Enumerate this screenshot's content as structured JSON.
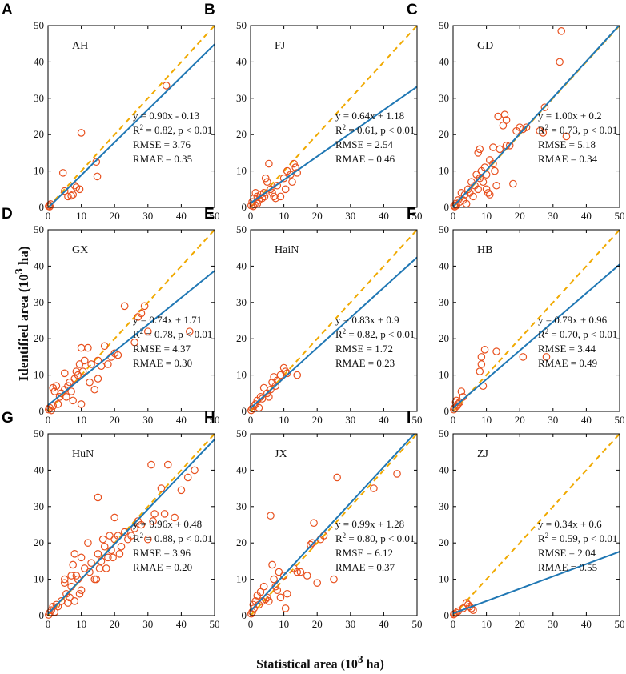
{
  "labels": {
    "y_axis_prefix": "Identified area (10",
    "y_axis_sup": "3",
    "y_axis_suffix": " ha)",
    "x_axis_prefix": "Statistical area (10",
    "x_axis_sup": "3",
    "x_axis_suffix": " ha)"
  },
  "style": {
    "marker_color": "#e8501e",
    "fit_color": "#1f77b4",
    "ref_color": "#f0a900"
  },
  "chart_data": [
    {
      "type": "scatter",
      "letter": "A",
      "region": "AH",
      "xlim": [
        0,
        50
      ],
      "ylim": [
        0,
        50
      ],
      "ticks": [
        0,
        10,
        20,
        30,
        40,
        50
      ],
      "fit": {
        "slope": 0.9,
        "intercept": -0.13
      },
      "stats": [
        "y = 0.90x - 0.13",
        "R2 = 0.82, p < 0.01",
        "RMSE = 3.76",
        "RMAE = 0.35"
      ],
      "points": [
        [
          0.2,
          0.3
        ],
        [
          0.4,
          0.6
        ],
        [
          0.5,
          0.2
        ],
        [
          0.8,
          0.9
        ],
        [
          4.5,
          9.5
        ],
        [
          5,
          4.5
        ],
        [
          6,
          3
        ],
        [
          7,
          3.2
        ],
        [
          7.5,
          3.5
        ],
        [
          8,
          6
        ],
        [
          8.5,
          5.5
        ],
        [
          9.5,
          5
        ],
        [
          10,
          20.5
        ],
        [
          14.5,
          12.5
        ],
        [
          14.8,
          8.5
        ],
        [
          35.5,
          33.5
        ]
      ]
    },
    {
      "type": "scatter",
      "letter": "B",
      "region": "FJ",
      "xlim": [
        0,
        50
      ],
      "ylim": [
        0,
        50
      ],
      "ticks": [
        0,
        10,
        20,
        30,
        40,
        50
      ],
      "fit": {
        "slope": 0.64,
        "intercept": 1.18
      },
      "stats": [
        "y = 0.64x + 1.18",
        "R2 = 0.61, p < 0.01",
        "RMSE = 2.54",
        "RMAE = 0.46"
      ],
      "points": [
        [
          0.2,
          0.5
        ],
        [
          0.5,
          1.5
        ],
        [
          0.8,
          0.3
        ],
        [
          1,
          2.5
        ],
        [
          1.2,
          0.8
        ],
        [
          1.5,
          4
        ],
        [
          2,
          3
        ],
        [
          2,
          1
        ],
        [
          2.5,
          2
        ],
        [
          3,
          3.5
        ],
        [
          3.5,
          2.5
        ],
        [
          4,
          4
        ],
        [
          4.2,
          3
        ],
        [
          4.5,
          8
        ],
        [
          5,
          7
        ],
        [
          5.5,
          12
        ],
        [
          6,
          5
        ],
        [
          6.5,
          4
        ],
        [
          7,
          3
        ],
        [
          7.5,
          2.5
        ],
        [
          8,
          6
        ],
        [
          9,
          3
        ],
        [
          10,
          8
        ],
        [
          10.5,
          5
        ],
        [
          11,
          10
        ],
        [
          12,
          9
        ],
        [
          13,
          12
        ],
        [
          13.5,
          11
        ],
        [
          12.5,
          7
        ],
        [
          14,
          9.5
        ]
      ]
    },
    {
      "type": "scatter",
      "letter": "C",
      "region": "GD",
      "xlim": [
        0,
        50
      ],
      "ylim": [
        0,
        50
      ],
      "ticks": [
        0,
        10,
        20,
        30,
        40,
        50
      ],
      "fit": {
        "slope": 1.0,
        "intercept": 0.2
      },
      "stats": [
        "y = 1.00x + 0.2",
        "R2 = 0.73, p < 0.01",
        "RMSE = 5.18",
        "RMAE = 0.34"
      ],
      "points": [
        [
          0.3,
          0.5
        ],
        [
          0.5,
          0.2
        ],
        [
          0.8,
          1
        ],
        [
          1,
          0.5
        ],
        [
          1.5,
          2
        ],
        [
          2,
          1.5
        ],
        [
          2.5,
          4
        ],
        [
          3,
          2
        ],
        [
          3.5,
          3.5
        ],
        [
          4,
          1
        ],
        [
          4.5,
          5
        ],
        [
          5,
          4
        ],
        [
          5.5,
          7
        ],
        [
          6,
          3
        ],
        [
          6.5,
          6
        ],
        [
          7,
          9
        ],
        [
          7.5,
          15
        ],
        [
          7.5,
          5
        ],
        [
          8,
          16
        ],
        [
          8,
          8
        ],
        [
          8.5,
          10
        ],
        [
          9,
          7
        ],
        [
          9.5,
          11
        ],
        [
          10,
          5
        ],
        [
          10,
          9
        ],
        [
          10.5,
          4
        ],
        [
          11,
          13
        ],
        [
          11,
          3.5
        ],
        [
          12,
          16.5
        ],
        [
          12,
          12
        ],
        [
          12.5,
          10
        ],
        [
          13,
          6
        ],
        [
          13.5,
          25
        ],
        [
          14,
          16
        ],
        [
          15,
          22.5
        ],
        [
          15.5,
          25.5
        ],
        [
          16,
          17
        ],
        [
          16,
          24
        ],
        [
          17,
          17
        ],
        [
          18,
          6.5
        ],
        [
          19,
          21
        ],
        [
          20,
          22
        ],
        [
          21,
          21.5
        ],
        [
          22,
          22
        ],
        [
          26,
          21
        ],
        [
          27,
          20.5
        ],
        [
          27.5,
          27.5
        ],
        [
          32,
          40
        ],
        [
          32.5,
          48.5
        ],
        [
          34,
          19.5
        ]
      ]
    },
    {
      "type": "scatter",
      "letter": "D",
      "region": "GX",
      "xlim": [
        0,
        50
      ],
      "ylim": [
        0,
        50
      ],
      "ticks": [
        0,
        10,
        20,
        30,
        40,
        50
      ],
      "fit": {
        "slope": 0.74,
        "intercept": 1.71
      },
      "stats": [
        "y = 0.74x + 1.71",
        "R2 = 0.78, p < 0.01",
        "RMSE = 4.37",
        "RMAE = 0.30"
      ],
      "points": [
        [
          0.2,
          0.5
        ],
        [
          0.5,
          1
        ],
        [
          1,
          0.3
        ],
        [
          1.5,
          1.5
        ],
        [
          1.5,
          6.5
        ],
        [
          2,
          5.5
        ],
        [
          2.5,
          7
        ],
        [
          3,
          2
        ],
        [
          3.5,
          4
        ],
        [
          4,
          5
        ],
        [
          5,
          6
        ],
        [
          5,
          10.5
        ],
        [
          5.5,
          4
        ],
        [
          6,
          7
        ],
        [
          6.5,
          8
        ],
        [
          7,
          5.5
        ],
        [
          7.5,
          3
        ],
        [
          8,
          9
        ],
        [
          8.5,
          11
        ],
        [
          9,
          10
        ],
        [
          9.5,
          13
        ],
        [
          10,
          2
        ],
        [
          10,
          17.5
        ],
        [
          10.5,
          11
        ],
        [
          11,
          14
        ],
        [
          12,
          17.5
        ],
        [
          12.5,
          8
        ],
        [
          13,
          13
        ],
        [
          14,
          6
        ],
        [
          15,
          14
        ],
        [
          15,
          9
        ],
        [
          16,
          12.5
        ],
        [
          17,
          18
        ],
        [
          18,
          13
        ],
        [
          19,
          15
        ],
        [
          20,
          16
        ],
        [
          21,
          15.5
        ],
        [
          23,
          29
        ],
        [
          26,
          19
        ],
        [
          27,
          26
        ],
        [
          28,
          27
        ],
        [
          29,
          29
        ],
        [
          30,
          22
        ],
        [
          42.5,
          22
        ]
      ]
    },
    {
      "type": "scatter",
      "letter": "E",
      "region": "HaiN",
      "xlim": [
        0,
        50
      ],
      "ylim": [
        0,
        50
      ],
      "ticks": [
        0,
        10,
        20,
        30,
        40,
        50
      ],
      "fit": {
        "slope": 0.83,
        "intercept": 0.9
      },
      "stats": [
        "y = 0.83x + 0.9",
        "R2 = 0.82, p < 0.01",
        "RMSE = 1.72",
        "RMAE = 0.23"
      ],
      "points": [
        [
          0.2,
          0.3
        ],
        [
          0.5,
          0.8
        ],
        [
          1,
          1.5
        ],
        [
          1.5,
          2
        ],
        [
          2,
          3
        ],
        [
          2.5,
          1
        ],
        [
          3,
          4
        ],
        [
          3.5,
          3.5
        ],
        [
          4,
          6.5
        ],
        [
          5,
          5
        ],
        [
          5.5,
          4
        ],
        [
          6,
          6
        ],
        [
          6.5,
          8
        ],
        [
          7,
          9.5
        ],
        [
          7.5,
          7
        ],
        [
          8,
          8.5
        ],
        [
          9,
          10
        ],
        [
          10,
          12
        ],
        [
          10.5,
          11
        ],
        [
          11,
          10.5
        ],
        [
          14,
          10
        ]
      ]
    },
    {
      "type": "scatter",
      "letter": "F",
      "region": "HB",
      "xlim": [
        0,
        50
      ],
      "ylim": [
        0,
        50
      ],
      "ticks": [
        0,
        10,
        20,
        30,
        40,
        50
      ],
      "fit": {
        "slope": 0.79,
        "intercept": 0.96
      },
      "stats": [
        "y = 0.79x + 0.96",
        "R2 = 0.70, p < 0.01",
        "RMSE = 3.44",
        "RMAE = 0.49"
      ],
      "points": [
        [
          0.2,
          0.5
        ],
        [
          0.5,
          1
        ],
        [
          0.8,
          2.5
        ],
        [
          1,
          3
        ],
        [
          1.2,
          1.5
        ],
        [
          1.5,
          2
        ],
        [
          2,
          2.5
        ],
        [
          2.5,
          5.5
        ],
        [
          3,
          4
        ],
        [
          8,
          11
        ],
        [
          8.5,
          13
        ],
        [
          8.5,
          15
        ],
        [
          9,
          7
        ],
        [
          9.5,
          17
        ],
        [
          13,
          16.5
        ],
        [
          21,
          15
        ],
        [
          28,
          15
        ]
      ]
    },
    {
      "type": "scatter",
      "letter": "G",
      "region": "HuN",
      "xlim": [
        0,
        50
      ],
      "ylim": [
        0,
        50
      ],
      "ticks": [
        0,
        10,
        20,
        30,
        40,
        50
      ],
      "fit": {
        "slope": 0.96,
        "intercept": 0.48
      },
      "stats": [
        "y = 0.96x + 0.48",
        "R2 = 0.88, p < 0.01",
        "RMSE = 3.96",
        "RMAE = 0.20"
      ],
      "points": [
        [
          0.2,
          0.2
        ],
        [
          0.5,
          0.8
        ],
        [
          1,
          1.5
        ],
        [
          1.5,
          2.5
        ],
        [
          2,
          1
        ],
        [
          2.5,
          3
        ],
        [
          3,
          2.5
        ],
        [
          4,
          4
        ],
        [
          5,
          9
        ],
        [
          5,
          10
        ],
        [
          5.5,
          6
        ],
        [
          6,
          3.5
        ],
        [
          6.5,
          5
        ],
        [
          7,
          8
        ],
        [
          7,
          11
        ],
        [
          7.5,
          14
        ],
        [
          8,
          17
        ],
        [
          8,
          4
        ],
        [
          8.5,
          11
        ],
        [
          9,
          10
        ],
        [
          9.5,
          6
        ],
        [
          10,
          7
        ],
        [
          10,
          16
        ],
        [
          11,
          13
        ],
        [
          12,
          20
        ],
        [
          12.5,
          12
        ],
        [
          13,
          14.5
        ],
        [
          14,
          10
        ],
        [
          14.5,
          10
        ],
        [
          15,
          32.5
        ],
        [
          15,
          17
        ],
        [
          15.5,
          13
        ],
        [
          16,
          15
        ],
        [
          16.5,
          21
        ],
        [
          17,
          19
        ],
        [
          17.5,
          13
        ],
        [
          18,
          16
        ],
        [
          18.5,
          22
        ],
        [
          19,
          18
        ],
        [
          19.5,
          16
        ],
        [
          20,
          21
        ],
        [
          20,
          27
        ],
        [
          21,
          22
        ],
        [
          21.5,
          17
        ],
        [
          22,
          19
        ],
        [
          23,
          23
        ],
        [
          24,
          21
        ],
        [
          25,
          22
        ],
        [
          26,
          24
        ],
        [
          27,
          26
        ],
        [
          28,
          25
        ],
        [
          30,
          21
        ],
        [
          31,
          41.5
        ],
        [
          31.5,
          26
        ],
        [
          32,
          28
        ],
        [
          34,
          35
        ],
        [
          35,
          28
        ],
        [
          36,
          41.5
        ],
        [
          38,
          27
        ],
        [
          40,
          34.5
        ],
        [
          42,
          38
        ],
        [
          44,
          40
        ]
      ]
    },
    {
      "type": "scatter",
      "letter": "H",
      "region": "JX",
      "xlim": [
        0,
        50
      ],
      "ylim": [
        0,
        50
      ],
      "ticks": [
        0,
        10,
        20,
        30,
        40,
        50
      ],
      "fit": {
        "slope": 0.99,
        "intercept": 1.28
      },
      "stats": [
        "y = 0.99x + 1.28",
        "R2 = 0.80, p < 0.01",
        "RMSE = 6.12",
        "RMAE = 0.37"
      ],
      "points": [
        [
          0.2,
          0.5
        ],
        [
          0.5,
          1
        ],
        [
          0.8,
          3
        ],
        [
          1,
          2
        ],
        [
          1.5,
          4
        ],
        [
          2,
          5.5
        ],
        [
          2.5,
          3
        ],
        [
          3,
          6.5
        ],
        [
          3.5,
          4
        ],
        [
          4,
          8
        ],
        [
          4.5,
          4.5
        ],
        [
          5,
          5
        ],
        [
          5.5,
          4
        ],
        [
          6,
          27.5
        ],
        [
          6.5,
          14
        ],
        [
          7,
          10
        ],
        [
          7.5,
          8
        ],
        [
          8,
          7
        ],
        [
          8.5,
          12
        ],
        [
          9,
          5
        ],
        [
          10,
          11
        ],
        [
          10.5,
          2
        ],
        [
          11,
          6
        ],
        [
          13,
          13
        ],
        [
          14,
          12
        ],
        [
          15,
          12
        ],
        [
          17,
          11
        ],
        [
          18,
          19.5
        ],
        [
          18.5,
          20
        ],
        [
          19,
          25.5
        ],
        [
          20,
          9
        ],
        [
          21,
          21
        ],
        [
          22,
          22
        ],
        [
          25,
          10
        ],
        [
          26,
          38
        ],
        [
          37,
          35
        ],
        [
          44,
          39
        ]
      ]
    },
    {
      "type": "scatter",
      "letter": "I",
      "region": "ZJ",
      "xlim": [
        0,
        50
      ],
      "ylim": [
        0,
        50
      ],
      "ticks": [
        0,
        10,
        20,
        30,
        40,
        50
      ],
      "fit": {
        "slope": 0.34,
        "intercept": 0.6
      },
      "stats": [
        "y = 0.34x + 0.6",
        "R2 = 0.59, p < 0.01",
        "RMSE = 2.04",
        "RMAE = 0.55"
      ],
      "points": [
        [
          0.2,
          0.3
        ],
        [
          0.5,
          0.5
        ],
        [
          1,
          0.8
        ],
        [
          1.5,
          1.2
        ],
        [
          3,
          2
        ],
        [
          4,
          3.5
        ],
        [
          4.5,
          3
        ],
        [
          5,
          2.5
        ],
        [
          5.5,
          2
        ],
        [
          6,
          1.5
        ]
      ]
    }
  ]
}
